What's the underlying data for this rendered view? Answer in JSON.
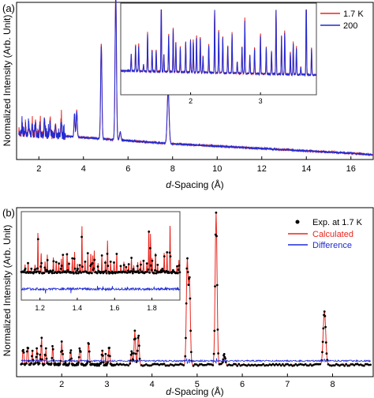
{
  "chart_data": [
    {
      "panel_label": "(a)",
      "type": "line",
      "xlabel_prefix": "d",
      "xlabel_rest": "-Spacing (Å)",
      "ylabel": "Normalized Intensity (Arb. Unit)",
      "xlim": [
        1,
        17
      ],
      "xticks": [
        2,
        4,
        6,
        8,
        10,
        12,
        14,
        16
      ],
      "ylim": [
        0,
        1
      ],
      "legend": {
        "placement": "top-right",
        "entries": [
          "1.7 K",
          "200"
        ]
      },
      "series": [
        {
          "name": "1.7 K",
          "color": "#e8261f"
        },
        {
          "name": "200",
          "color": "#1f2bd6"
        }
      ],
      "background": [
        [
          1.1,
          0.17
        ],
        [
          2,
          0.16
        ],
        [
          3,
          0.15
        ],
        [
          4,
          0.14
        ],
        [
          6,
          0.12
        ],
        [
          8,
          0.1
        ],
        [
          10,
          0.085
        ],
        [
          12,
          0.07
        ],
        [
          14,
          0.055
        ],
        [
          16,
          0.04
        ],
        [
          17,
          0.03
        ]
      ],
      "peaks": [
        {
          "x": 1.25,
          "h": 0.06
        },
        {
          "x": 1.4,
          "h": 0.05
        },
        {
          "x": 1.55,
          "h": 0.07
        },
        {
          "x": 1.7,
          "h": 0.06
        },
        {
          "x": 1.85,
          "h": 0.09
        },
        {
          "x": 2.05,
          "h": 0.08
        },
        {
          "x": 2.25,
          "h": 0.11
        },
        {
          "x": 2.5,
          "h": 0.09
        },
        {
          "x": 2.75,
          "h": 0.07
        },
        {
          "x": 3.0,
          "h": 0.1
        },
        {
          "x": 3.6,
          "h": 0.15
        },
        {
          "x": 3.7,
          "h": 0.17
        },
        {
          "x": 4.8,
          "h": 0.61
        },
        {
          "x": 5.45,
          "h": 0.94
        },
        {
          "x": 5.65,
          "h": 0.05
        },
        {
          "x": 7.8,
          "h": 0.35
        }
      ],
      "inset": {
        "xlim": [
          1.0,
          3.8
        ],
        "xticks": [
          2,
          3
        ]
      }
    },
    {
      "panel_label": "(b)",
      "type": "scatter",
      "xlabel_prefix": "d",
      "xlabel_rest": "-Spacing (Å)",
      "ylabel": "Normalized Intensity (Arb. Unit)",
      "xlim": [
        1,
        8.9
      ],
      "xticks": [
        2,
        3,
        4,
        5,
        6,
        7,
        8
      ],
      "ylim": [
        0,
        1
      ],
      "legend": {
        "placement": "top-right",
        "entries": [
          "Exp. at 1.7 K",
          "Calculated",
          "Difference"
        ]
      },
      "series": [
        {
          "name": "Exp. at 1.7 K",
          "color": "#000000"
        },
        {
          "name": "Calculated",
          "color": "#e8261f"
        },
        {
          "name": "Difference",
          "color": "#1f2bd6"
        }
      ],
      "baseline": 0.07,
      "peaks": [
        {
          "x": 1.15,
          "h": 0.09
        },
        {
          "x": 1.25,
          "h": 0.12
        },
        {
          "x": 1.35,
          "h": 0.08
        },
        {
          "x": 1.45,
          "h": 0.1
        },
        {
          "x": 1.55,
          "h": 0.13
        },
        {
          "x": 1.65,
          "h": 0.09
        },
        {
          "x": 1.8,
          "h": 0.11
        },
        {
          "x": 2.0,
          "h": 0.14
        },
        {
          "x": 2.2,
          "h": 0.09
        },
        {
          "x": 2.4,
          "h": 0.1
        },
        {
          "x": 2.6,
          "h": 0.12
        },
        {
          "x": 2.9,
          "h": 0.08
        },
        {
          "x": 3.05,
          "h": 0.11
        },
        {
          "x": 3.55,
          "h": 0.08
        },
        {
          "x": 3.62,
          "h": 0.2
        },
        {
          "x": 3.7,
          "h": 0.18
        },
        {
          "x": 4.78,
          "h": 0.62
        },
        {
          "x": 4.83,
          "h": 0.5
        },
        {
          "x": 5.42,
          "h": 0.9
        },
        {
          "x": 5.6,
          "h": 0.06
        },
        {
          "x": 7.82,
          "h": 0.32
        }
      ],
      "inset": {
        "xlim": [
          1.1,
          1.95
        ],
        "xticks": [
          1.2,
          1.4,
          1.6,
          1.8
        ]
      }
    }
  ]
}
